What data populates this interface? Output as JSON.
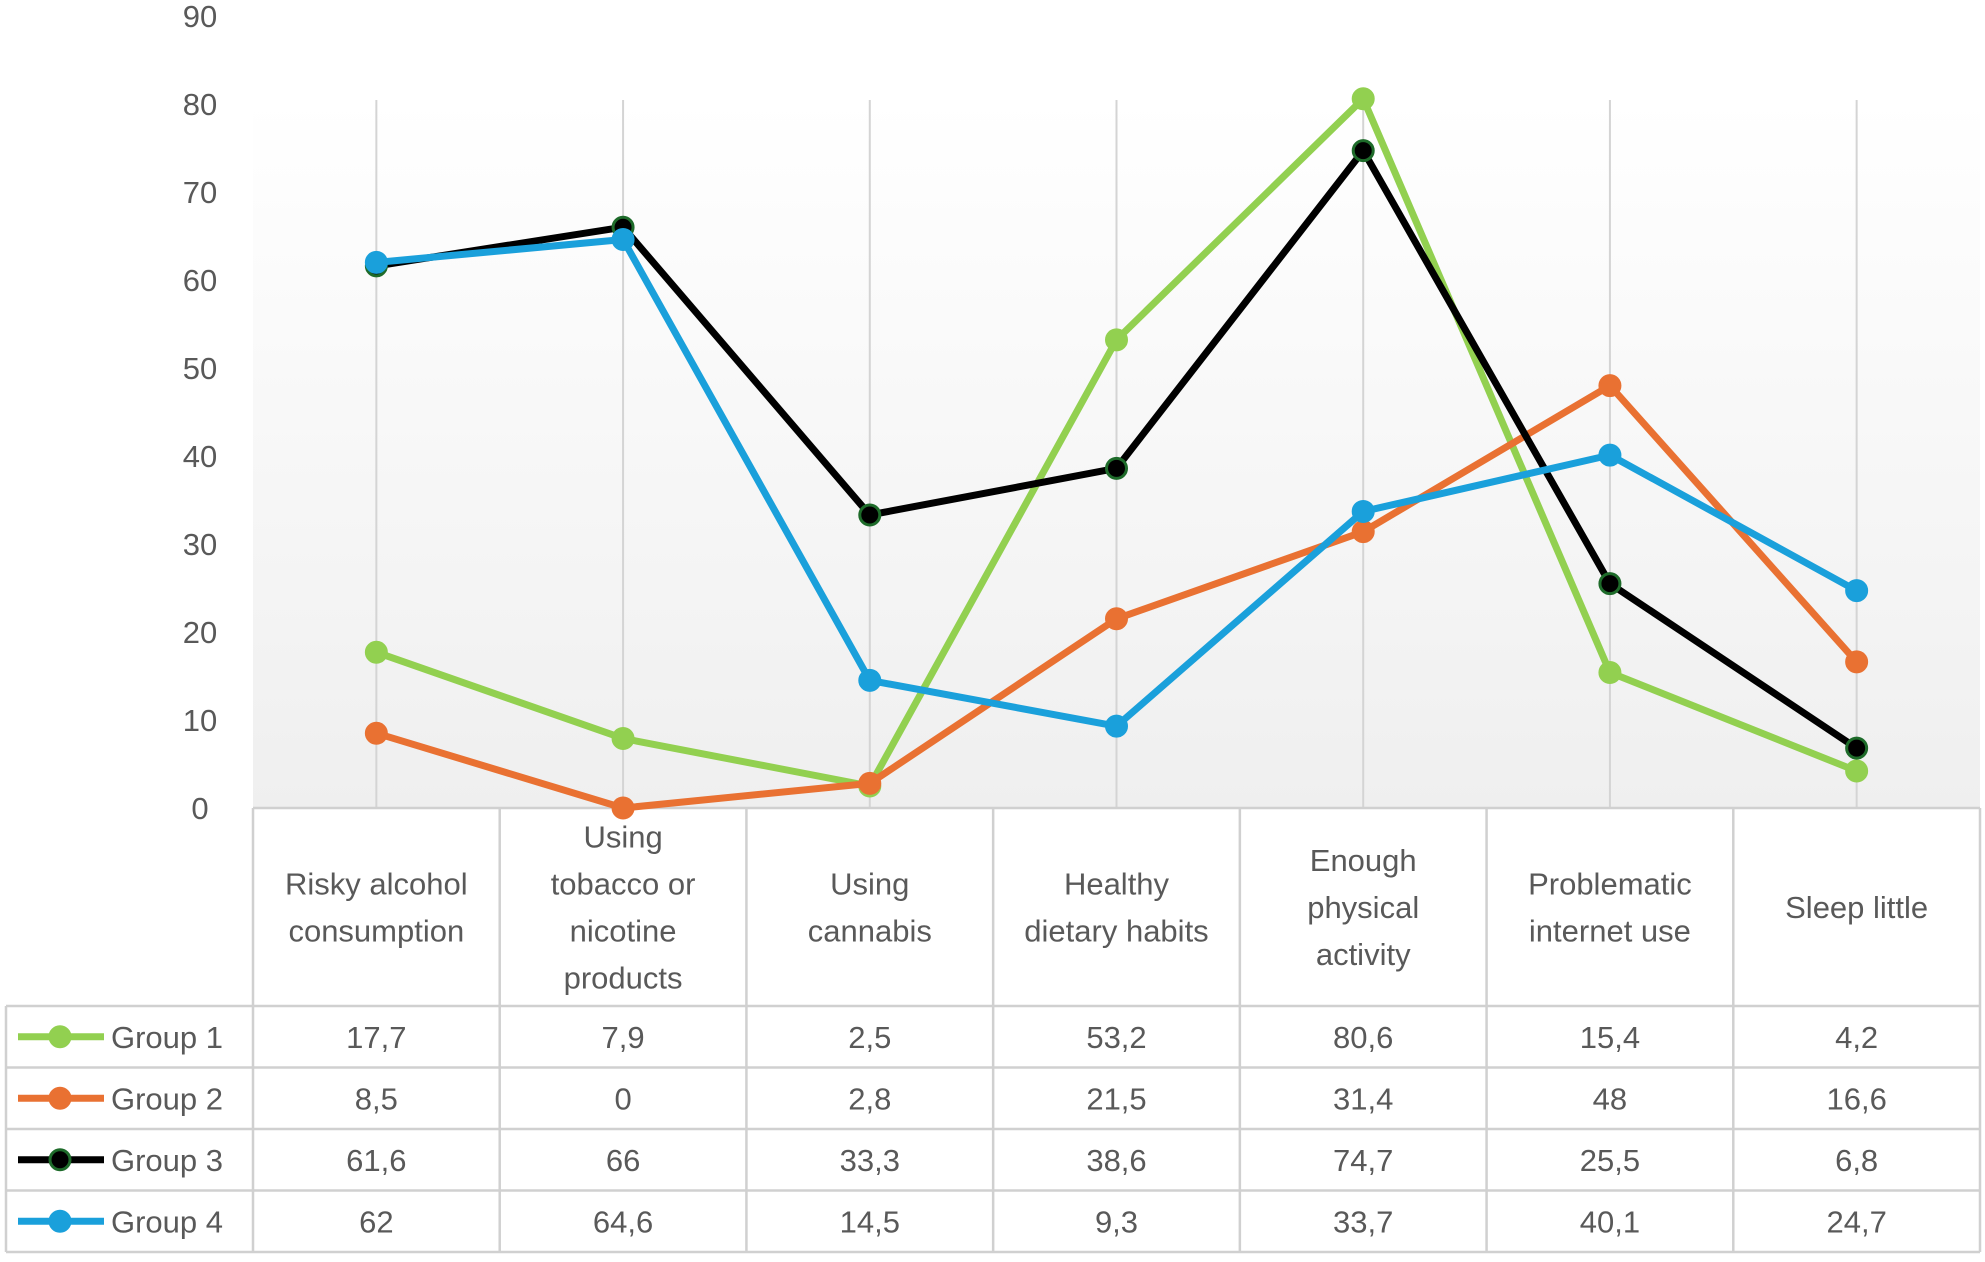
{
  "chart_data": {
    "type": "line",
    "title": "",
    "xlabel": "",
    "ylabel": "",
    "ylim": [
      0,
      90
    ],
    "yticks": [
      0,
      10,
      20,
      30,
      40,
      50,
      60,
      70,
      80,
      90
    ],
    "grid": "vertical drop lines at each category",
    "legend": "data table below plot",
    "categories": [
      [
        "Risky alcohol",
        "consumption"
      ],
      [
        "Using",
        "tobacco or",
        "nicotine",
        "products"
      ],
      [
        "Using",
        "cannabis"
      ],
      [
        "Healthy",
        "dietary habits"
      ],
      [
        "Enough",
        "physical",
        "activity"
      ],
      [
        "Problematic",
        "internet use"
      ],
      [
        "Sleep little"
      ]
    ],
    "series": [
      {
        "name": "Group 1",
        "color": "#92D050",
        "marker_edge": "#92D050",
        "values": [
          17.7,
          7.9,
          2.5,
          53.2,
          80.6,
          15.4,
          4.2
        ],
        "labels": [
          "17,7",
          "7,9",
          "2,5",
          "53,2",
          "80,6",
          "15,4",
          "4,2"
        ]
      },
      {
        "name": "Group 2",
        "color": "#E97132",
        "marker_edge": "#E97132",
        "values": [
          8.5,
          0,
          2.8,
          21.5,
          31.4,
          48,
          16.6
        ],
        "labels": [
          "8,5",
          "0",
          "2,8",
          "21,5",
          "31,4",
          "48",
          "16,6"
        ]
      },
      {
        "name": "Group 3",
        "color": "#000000",
        "marker_edge": "#1e6b2a",
        "values": [
          61.6,
          66,
          33.3,
          38.6,
          74.7,
          25.5,
          6.8
        ],
        "labels": [
          "61,6",
          "66",
          "33,3",
          "38,6",
          "74,7",
          "25,5",
          "6,8"
        ]
      },
      {
        "name": "Group 4",
        "color": "#1AA0DB",
        "marker_edge": "#1AA0DB",
        "values": [
          62,
          64.6,
          14.5,
          9.3,
          33.7,
          40.1,
          24.7
        ],
        "labels": [
          "62",
          "64,6",
          "14,5",
          "9,3",
          "33,7",
          "40,1",
          "24,7"
        ]
      }
    ]
  }
}
